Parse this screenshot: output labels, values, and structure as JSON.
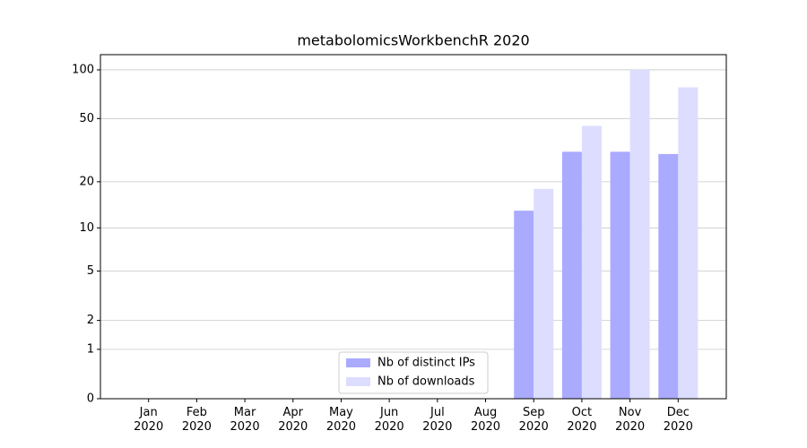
{
  "chart_data": {
    "type": "bar",
    "title": "metabolomicsWorkbenchR 2020",
    "categories": [
      "Jan 2020",
      "Feb 2020",
      "Mar 2020",
      "Apr 2020",
      "May 2020",
      "Jun 2020",
      "Jul 2020",
      "Aug 2020",
      "Sep 2020",
      "Oct 2020",
      "Nov 2020",
      "Dec 2020"
    ],
    "series": [
      {
        "name": "Nb of distinct IPs",
        "color": "#aaaaff",
        "values": [
          0,
          0,
          0,
          0,
          0,
          0,
          0,
          0,
          13,
          31,
          31,
          30
        ]
      },
      {
        "name": "Nb of downloads",
        "color": "#ddddff",
        "values": [
          0,
          0,
          0,
          0,
          0,
          0,
          0,
          0,
          18,
          45,
          100,
          78
        ]
      }
    ],
    "yscale": "log1p",
    "ylim": [
      0,
      124
    ],
    "yticks": [
      0,
      1,
      2,
      5,
      10,
      20,
      50,
      100
    ],
    "grid": true,
    "legend": "lower center"
  }
}
